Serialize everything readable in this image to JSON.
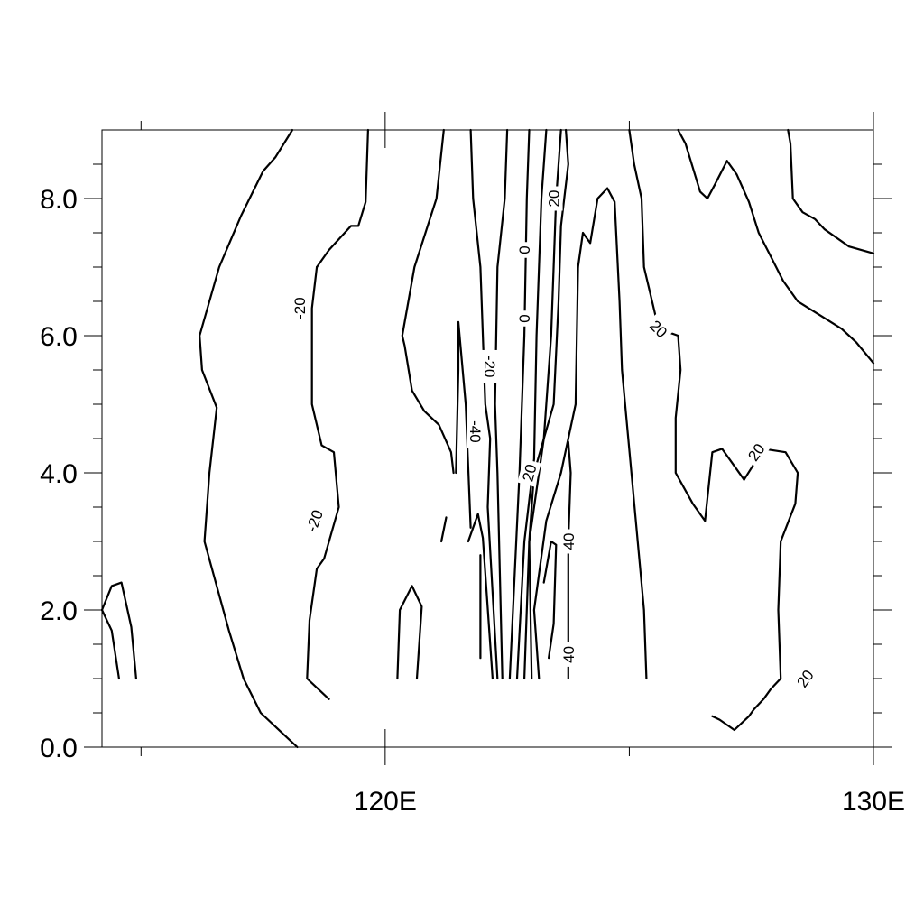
{
  "chart_data": {
    "type": "contour",
    "title": "",
    "xlabel": "",
    "ylabel": "",
    "xlim": [
      114.2,
      130.0
    ],
    "ylim": [
      0.0,
      9.0
    ],
    "x_ticks": [
      {
        "value": 120,
        "label": "120E"
      },
      {
        "value": 130,
        "label": "130E"
      }
    ],
    "y_ticks": [
      {
        "value": 0.0,
        "label": "0.0"
      },
      {
        "value": 2.0,
        "label": "2.0"
      },
      {
        "value": 4.0,
        "label": "4.0"
      },
      {
        "value": 6.0,
        "label": "6.0"
      },
      {
        "value": 8.0,
        "label": "8.0"
      }
    ],
    "x_minor_ticks": [
      115,
      125
    ],
    "y_minor_ticks": [
      0.5,
      1.0,
      1.5,
      2.5,
      3.0,
      3.5,
      4.5,
      5.0,
      5.5,
      6.5,
      7.0,
      7.5,
      8.5
    ],
    "contour_labels": [
      {
        "text": "-20",
        "x": 118.25,
        "y": 6.4,
        "angle": -90
      },
      {
        "text": "-20",
        "x": 118.55,
        "y": 3.3,
        "angle": -70
      },
      {
        "text": "-20",
        "x": 122.15,
        "y": 5.55,
        "angle": 90
      },
      {
        "text": "-40",
        "x": 121.85,
        "y": 4.6,
        "angle": 90
      },
      {
        "text": "0",
        "x": 122.85,
        "y": 7.25,
        "angle": -90
      },
      {
        "text": "0",
        "x": 122.85,
        "y": 6.25,
        "angle": -90
      },
      {
        "text": "20",
        "x": 123.45,
        "y": 8.0,
        "angle": -90
      },
      {
        "text": "20",
        "x": 122.95,
        "y": 4.0,
        "angle": -75
      },
      {
        "text": "20",
        "x": 125.6,
        "y": 6.1,
        "angle": 45
      },
      {
        "text": "20",
        "x": 127.6,
        "y": 4.3,
        "angle": -55
      },
      {
        "text": "20",
        "x": 128.6,
        "y": 1.0,
        "angle": -55
      },
      {
        "text": "40",
        "x": 123.75,
        "y": 3.0,
        "angle": -90
      },
      {
        "text": "40",
        "x": 123.75,
        "y": 1.35,
        "angle": -90
      }
    ],
    "contours": [
      [
        [
          114.2,
          2.0
        ],
        [
          114.4,
          2.35
        ],
        [
          114.6,
          2.4
        ],
        [
          114.8,
          1.75
        ],
        [
          114.9,
          1.0
        ]
      ],
      [
        [
          114.2,
          2.0
        ],
        [
          114.4,
          1.7
        ],
        [
          114.55,
          1.0
        ]
      ],
      [
        [
          118.1,
          9.0
        ],
        [
          117.75,
          8.6
        ],
        [
          117.5,
          8.4
        ],
        [
          117.05,
          7.75
        ],
        [
          116.6,
          7.0
        ],
        [
          116.2,
          6.0
        ],
        [
          116.25,
          5.5
        ],
        [
          116.55,
          4.95
        ],
        [
          116.4,
          4.0
        ],
        [
          116.3,
          3.0
        ],
        [
          116.8,
          1.7
        ],
        [
          117.1,
          1.0
        ],
        [
          117.45,
          0.5
        ],
        [
          117.9,
          0.2
        ],
        [
          118.2,
          0.0
        ]
      ],
      [
        [
          118.6,
          7.0
        ],
        [
          118.85,
          7.25
        ],
        [
          119.3,
          7.6
        ],
        [
          119.45,
          7.6
        ],
        [
          119.6,
          7.95
        ],
        [
          119.65,
          9.0
        ]
      ],
      [
        [
          118.6,
          7.0
        ],
        [
          118.5,
          6.4
        ],
        [
          118.5,
          5.0
        ],
        [
          118.7,
          4.4
        ],
        [
          118.95,
          4.3
        ],
        [
          119.05,
          3.5
        ],
        [
          118.75,
          2.75
        ],
        [
          118.6,
          2.6
        ],
        [
          118.45,
          1.85
        ],
        [
          118.4,
          1.0
        ],
        [
          118.85,
          0.7
        ]
      ],
      [
        [
          121.2,
          9.0
        ],
        [
          121.05,
          8.0
        ],
        [
          120.6,
          7.0
        ],
        [
          120.35,
          6.0
        ],
        [
          120.4,
          5.85
        ],
        [
          120.55,
          5.2
        ],
        [
          120.8,
          4.9
        ],
        [
          121.1,
          4.7
        ],
        [
          121.35,
          4.3
        ],
        [
          121.4,
          4.0
        ]
      ],
      [
        [
          120.25,
          1.0
        ],
        [
          120.3,
          2.0
        ],
        [
          120.55,
          2.35
        ],
        [
          120.75,
          2.05
        ],
        [
          120.65,
          1.0
        ]
      ],
      [
        [
          121.45,
          4.0
        ],
        [
          121.5,
          5.5
        ],
        [
          121.5,
          6.2
        ],
        [
          121.65,
          5.0
        ],
        [
          121.75,
          3.2
        ]
      ],
      [
        [
          121.15,
          3.0
        ],
        [
          121.25,
          3.35
        ]
      ],
      [
        [
          121.75,
          9.0
        ],
        [
          121.8,
          8.0
        ],
        [
          121.95,
          7.0
        ],
        [
          122.05,
          5.0
        ],
        [
          122.15,
          4.5
        ],
        [
          122.1,
          3.5
        ],
        [
          122.3,
          1.0
        ]
      ],
      [
        [
          121.7,
          3.0
        ],
        [
          121.9,
          3.4
        ],
        [
          122.0,
          3.05
        ],
        [
          122.2,
          1.0
        ]
      ],
      [
        [
          121.95,
          2.8
        ],
        [
          121.95,
          1.3
        ]
      ],
      [
        [
          122.5,
          9.0
        ],
        [
          122.45,
          8.0
        ],
        [
          122.3,
          7.0
        ],
        [
          122.25,
          5.0
        ],
        [
          122.3,
          4.0
        ],
        [
          122.4,
          1.0
        ]
      ],
      [
        [
          122.95,
          9.0
        ],
        [
          122.9,
          8.0
        ],
        [
          122.85,
          6.0
        ],
        [
          122.75,
          4.0
        ],
        [
          122.55,
          1.0
        ]
      ],
      [
        [
          123.3,
          9.0
        ],
        [
          123.2,
          8.0
        ],
        [
          123.1,
          6.0
        ],
        [
          123.05,
          4.2
        ],
        [
          122.85,
          3.0
        ],
        [
          122.7,
          1.0
        ]
      ],
      [
        [
          123.6,
          9.0
        ],
        [
          123.5,
          8.0
        ],
        [
          123.4,
          6.0
        ],
        [
          123.25,
          4.5
        ],
        [
          122.95,
          3.0
        ],
        [
          122.85,
          1.0
        ]
      ],
      [
        [
          123.7,
          9.0
        ],
        [
          123.75,
          8.5
        ],
        [
          123.6,
          7.6
        ],
        [
          123.55,
          6.5
        ],
        [
          123.45,
          5.0
        ],
        [
          123.05,
          4.0
        ],
        [
          122.95,
          3.0
        ],
        [
          123.0,
          1.0
        ]
      ],
      [
        [
          123.95,
          7.0
        ],
        [
          124.05,
          7.5
        ],
        [
          124.2,
          7.35
        ],
        [
          124.35,
          8.0
        ],
        [
          124.55,
          8.15
        ],
        [
          124.7,
          7.95
        ],
        [
          124.8,
          6.5
        ],
        [
          124.85,
          5.5
        ],
        [
          125.3,
          2.0
        ],
        [
          125.35,
          1.0
        ]
      ],
      [
        [
          123.95,
          7.0
        ],
        [
          123.9,
          5.0
        ],
        [
          123.6,
          4.0
        ],
        [
          123.3,
          3.3
        ],
        [
          123.05,
          2.0
        ],
        [
          123.15,
          1.0
        ]
      ],
      [
        [
          123.25,
          2.4
        ],
        [
          123.4,
          3.0
        ],
        [
          123.5,
          2.95
        ],
        [
          123.45,
          1.8
        ],
        [
          123.35,
          1.3
        ]
      ],
      [
        [
          123.75,
          4.45
        ],
        [
          123.8,
          4.0
        ],
        [
          123.75,
          3.0
        ],
        [
          123.75,
          1.0
        ]
      ],
      [
        [
          125.0,
          9.0
        ],
        [
          125.1,
          8.5
        ],
        [
          125.25,
          8.0
        ],
        [
          125.3,
          7.0
        ],
        [
          125.6,
          6.1
        ],
        [
          125.8,
          6.05
        ],
        [
          126.0,
          6.0
        ],
        [
          126.05,
          5.5
        ],
        [
          125.95,
          4.8
        ],
        [
          125.95,
          4.0
        ],
        [
          126.3,
          3.55
        ],
        [
          126.55,
          3.3
        ],
        [
          126.7,
          4.3
        ],
        [
          126.9,
          4.35
        ],
        [
          127.2,
          4.05
        ],
        [
          127.35,
          3.9
        ]
      ],
      [
        [
          126.0,
          9.0
        ],
        [
          126.15,
          8.8
        ],
        [
          126.45,
          8.1
        ],
        [
          126.6,
          8.0
        ],
        [
          126.75,
          8.2
        ],
        [
          127.0,
          8.55
        ],
        [
          127.2,
          8.35
        ],
        [
          127.45,
          7.95
        ],
        [
          127.65,
          7.5
        ],
        [
          127.9,
          7.15
        ],
        [
          128.15,
          6.8
        ],
        [
          128.45,
          6.5
        ],
        [
          128.9,
          6.3
        ],
        [
          129.35,
          6.1
        ],
        [
          129.65,
          5.9
        ],
        [
          130.0,
          5.6
        ]
      ],
      [
        [
          127.35,
          3.9
        ],
        [
          127.75,
          4.35
        ],
        [
          128.2,
          4.3
        ],
        [
          128.45,
          4.0
        ],
        [
          128.4,
          3.55
        ],
        [
          128.1,
          3.0
        ],
        [
          128.05,
          2.0
        ],
        [
          128.1,
          1.0
        ],
        [
          127.9,
          0.85
        ],
        [
          127.75,
          0.7
        ],
        [
          127.55,
          0.55
        ],
        [
          127.45,
          0.45
        ],
        [
          127.15,
          0.25
        ],
        [
          126.85,
          0.4
        ],
        [
          126.7,
          0.45
        ]
      ],
      [
        [
          128.25,
          9.0
        ],
        [
          128.3,
          8.8
        ],
        [
          128.35,
          8.0
        ],
        [
          128.55,
          7.8
        ],
        [
          128.8,
          7.7
        ],
        [
          129.0,
          7.55
        ],
        [
          129.5,
          7.3
        ],
        [
          130.0,
          7.2
        ]
      ]
    ]
  }
}
